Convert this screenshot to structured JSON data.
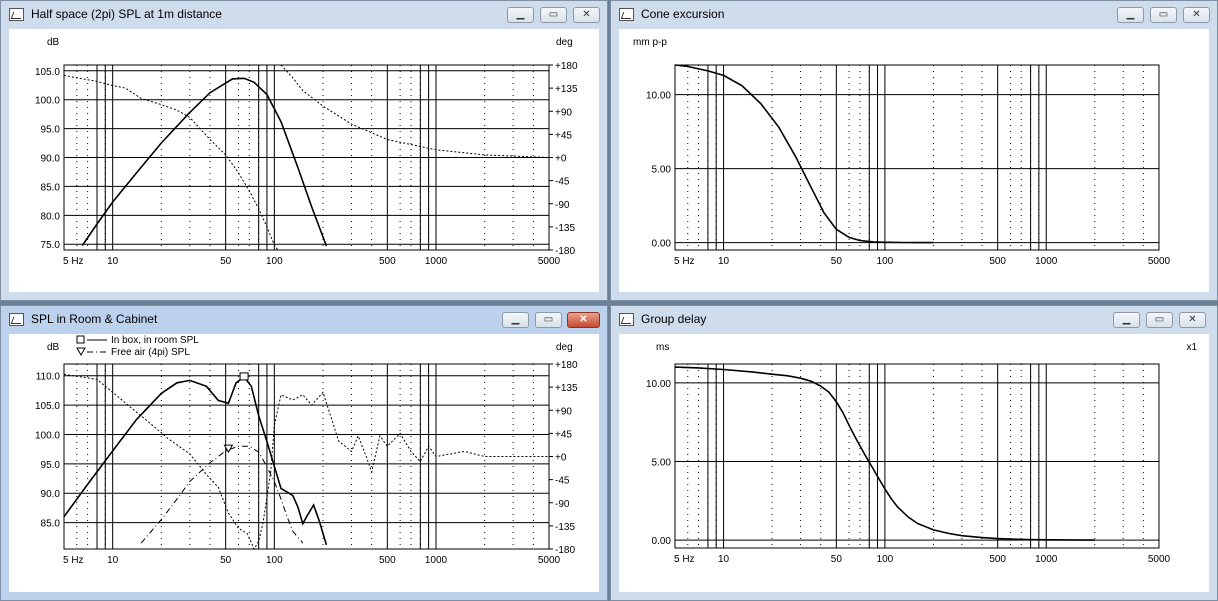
{
  "windows": [
    {
      "title": "Half space (2pi) SPL at 1m distance"
    },
    {
      "title": "Cone excursion"
    },
    {
      "title": "SPL in Room & Cabinet"
    },
    {
      "title": "Group delay"
    }
  ],
  "chart_data": [
    {
      "type": "line",
      "title": "Half space (2pi) SPL at 1m distance",
      "ylabel": "dB",
      "y2label": "deg",
      "xscale": "log",
      "xlim": [
        5,
        5000
      ],
      "xtick_labels": [
        "5 Hz",
        "10",
        "50",
        "100",
        "500",
        "1000",
        "5000"
      ],
      "ylim": [
        74,
        106
      ],
      "ytick_labels": [
        "105.0",
        "100.0",
        "95.0",
        "90.0",
        "85.0",
        "80.0",
        "75.0"
      ],
      "y2lim": [
        -180,
        180
      ],
      "y2tick_labels": [
        "+180",
        "+135",
        "+90",
        "+45",
        "+0",
        "-45",
        "-90",
        "-135",
        "-180"
      ],
      "series": [
        {
          "axis": "left",
          "style": "solid",
          "x": [
            6.5,
            8,
            10,
            14,
            20,
            30,
            40,
            55,
            65,
            75,
            90,
            110,
            140,
            170,
            210
          ],
          "y": [
            74.8,
            78.5,
            82.3,
            87.3,
            92.5,
            97.8,
            101.2,
            103.6,
            103.7,
            103.0,
            100.9,
            96.2,
            88.2,
            81.5,
            74.7
          ]
        },
        {
          "axis": "right",
          "style": "dashed",
          "x": [
            5,
            6,
            8,
            10,
            12,
            15,
            20,
            25,
            30,
            40,
            50,
            60,
            70,
            80,
            90,
            100,
            105,
            110,
            130,
            150,
            200,
            300,
            500,
            1000,
            2000,
            5000
          ],
          "y": [
            160,
            155,
            148,
            140,
            135,
            115,
            103,
            92,
            78,
            35,
            5,
            -30,
            -65,
            -100,
            -135,
            -170,
            -180,
            180,
            155,
            130,
            100,
            65,
            35,
            15,
            5,
            0
          ]
        }
      ]
    },
    {
      "type": "line",
      "title": "Cone excursion",
      "ylabel": "mm p-p",
      "xscale": "log",
      "xlim": [
        5,
        5000
      ],
      "xtick_labels": [
        "5 Hz",
        "10",
        "50",
        "100",
        "500",
        "1000",
        "5000"
      ],
      "ylim": [
        -0.5,
        12
      ],
      "ytick_labels": [
        "10.00",
        "5.00",
        "0.00"
      ],
      "series": [
        {
          "style": "solid",
          "x": [
            5,
            6,
            8,
            10,
            13,
            17,
            22,
            28,
            35,
            42,
            50,
            60,
            70,
            85,
            100,
            130,
            160,
            200
          ],
          "y": [
            12.0,
            11.9,
            11.6,
            11.3,
            10.6,
            9.4,
            7.8,
            5.8,
            3.7,
            2.0,
            0.9,
            0.35,
            0.14,
            0.05,
            0.02,
            0.01,
            0.0,
            0.0
          ]
        }
      ]
    },
    {
      "type": "line",
      "title": "SPL in Room & Cabinet",
      "ylabel": "dB",
      "y2label": "deg",
      "xscale": "log",
      "xlim": [
        5,
        5000
      ],
      "xtick_labels": [
        "5 Hz",
        "10",
        "50",
        "100",
        "500",
        "1000",
        "5000"
      ],
      "ylim": [
        80.5,
        112
      ],
      "ytick_labels": [
        "110.0",
        "105.0",
        "100.0",
        "95.0",
        "90.0",
        "85.0"
      ],
      "y2lim": [
        -180,
        180
      ],
      "y2tick_labels": [
        "+180",
        "+135",
        "+90",
        "+45",
        "+0",
        "-45",
        "-90",
        "-135",
        "-180"
      ],
      "legend": [
        "In box, in room SPL",
        "Free air (4pi) SPL"
      ],
      "series": [
        {
          "name": "In box, in room SPL",
          "axis": "left",
          "style": "solid",
          "x": [
            5,
            7,
            10,
            14,
            20,
            25,
            30,
            38,
            45,
            52,
            58,
            65,
            72,
            80,
            90,
            100,
            110,
            120,
            130,
            140,
            150,
            160,
            175,
            190,
            210
          ],
          "y": [
            86,
            91.5,
            97.2,
            102.5,
            107.0,
            108.8,
            109.2,
            108.2,
            105.8,
            105.3,
            108.8,
            109.8,
            108.2,
            103.2,
            98.8,
            94.6,
            90.8,
            90.2,
            89.6,
            87.6,
            84.8,
            86.2,
            88.0,
            85.2,
            81.2
          ]
        },
        {
          "name": "Free air (4pi) SPL",
          "axis": "left",
          "style": "dashdot",
          "x": [
            15,
            20,
            25,
            30,
            40,
            50,
            60,
            70,
            80,
            90,
            100,
            110,
            120,
            130,
            140,
            150
          ],
          "y": [
            81.5,
            85.5,
            89.0,
            92.0,
            95.2,
            97.2,
            98.0,
            98.0,
            97.0,
            94.5,
            92.0,
            89.0,
            86.0,
            83.5,
            82.5,
            81.5
          ]
        },
        {
          "axis": "right",
          "style": "dashed",
          "x": [
            5,
            8,
            10,
            13,
            17,
            22,
            30,
            38,
            45,
            52,
            60,
            68,
            75,
            80,
            85,
            90,
            95,
            100,
            110,
            130,
            150,
            170,
            200,
            250,
            300,
            330,
            370,
            400,
            450,
            500,
            600,
            700,
            800,
            900,
            1000,
            1500,
            2000,
            3000,
            5000
          ],
          "y": [
            160,
            150,
            125,
            95,
            65,
            35,
            5,
            -35,
            -60,
            -110,
            -140,
            -150,
            -180,
            -165,
            -130,
            -80,
            -30,
            60,
            120,
            110,
            120,
            100,
            125,
            30,
            10,
            40,
            0,
            -30,
            40,
            20,
            45,
            10,
            -10,
            20,
            0,
            10,
            0,
            0,
            0
          ]
        }
      ]
    },
    {
      "type": "line",
      "title": "Group delay",
      "ylabel": "ms",
      "y2label": "x1",
      "xscale": "log",
      "xlim": [
        5,
        5000
      ],
      "xtick_labels": [
        "5 Hz",
        "10",
        "50",
        "100",
        "500",
        "1000",
        "5000"
      ],
      "ylim": [
        -0.5,
        11.2
      ],
      "ytick_labels": [
        "10.00",
        "5.00",
        "0.00"
      ],
      "series": [
        {
          "style": "solid",
          "x": [
            5,
            7,
            10,
            15,
            20,
            25,
            30,
            35,
            40,
            45,
            50,
            55,
            60,
            65,
            70,
            75,
            80,
            85,
            90,
            100,
            110,
            120,
            140,
            160,
            200,
            250,
            300,
            400,
            500,
            700,
            1000,
            2000
          ],
          "y": [
            11.0,
            10.95,
            10.85,
            10.7,
            10.55,
            10.45,
            10.3,
            10.1,
            9.8,
            9.4,
            8.8,
            8.1,
            7.3,
            6.6,
            6.0,
            5.45,
            4.95,
            4.5,
            4.05,
            3.25,
            2.6,
            2.1,
            1.45,
            1.05,
            0.65,
            0.42,
            0.28,
            0.16,
            0.1,
            0.05,
            0.02,
            0.0
          ]
        }
      ]
    }
  ]
}
